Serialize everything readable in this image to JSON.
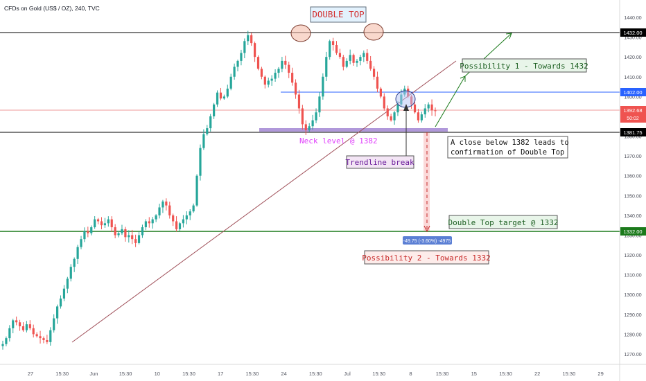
{
  "header": {
    "symbol_line": "CFDs on Gold (US$ / OZ), 240, TVC"
  },
  "colors": {
    "bull": "#26a69a",
    "bear": "#ef5350",
    "resistance": "#000000",
    "blue_level": "#2962ff",
    "current_price": "#ef5350",
    "target": "#1b7a1b",
    "trendline": "#a0505a",
    "neck_band": "#9575cd",
    "arrow_green": "#1b7a1b"
  },
  "annotations": {
    "double_top": "DOUBLE TOP",
    "neck_level": "Neck level @ 1382",
    "trendline_break": "Trendline break",
    "possibility_1": "Possibility 1 - Towards 1432",
    "possibility_2": "Possibility 2 - Towards 1332",
    "close_below_line1": "A close below 1382 leads to",
    "close_below_line2": "confirmation of Double Top",
    "target": "Double Top target @ 1332",
    "measure": "-49.75 (-3.60%) -4975"
  },
  "price_tags": {
    "level_1432": "1432.00",
    "level_1402": "1402.00",
    "current": "1392.68",
    "countdown": "50:02",
    "level_1381": "1381.75",
    "level_1332": "1332.00"
  },
  "chart_data": {
    "type": "candlestick",
    "title": "CFDs on Gold (US$ / OZ), 240, TVC",
    "y_ticks": [
      "1440.00",
      "1430.00",
      "1420.00",
      "1410.00",
      "1400.00",
      "1390.00",
      "1380.00",
      "1370.00",
      "1360.00",
      "1350.00",
      "1340.00",
      "1330.00",
      "1320.00",
      "1310.00",
      "1300.00",
      "1290.00",
      "1280.00",
      "1270.00"
    ],
    "ylim": [
      1265,
      1445
    ],
    "x_tick_labels": [
      "27",
      "15:30",
      "Jun",
      "15:30",
      "10",
      "15:30",
      "17",
      "15:30",
      "24",
      "15:30",
      "Jul",
      "15:30",
      "8",
      "15:30",
      "15",
      "15:30",
      "22",
      "15:30",
      "29"
    ],
    "close_path": [
      1275,
      1278,
      1283,
      1287,
      1286,
      1284,
      1282,
      1285,
      1283,
      1280,
      1279,
      1278,
      1277,
      1276,
      1282,
      1288,
      1294,
      1298,
      1303,
      1308,
      1314,
      1318,
      1324,
      1328,
      1332,
      1331,
      1334,
      1338,
      1337,
      1335,
      1336,
      1338,
      1334,
      1330,
      1331,
      1333,
      1329,
      1330,
      1328,
      1326,
      1330,
      1334,
      1337,
      1336,
      1338,
      1340,
      1344,
      1347,
      1345,
      1340,
      1337,
      1333,
      1336,
      1338,
      1340,
      1342,
      1345,
      1360,
      1374,
      1381,
      1384,
      1390,
      1396,
      1402,
      1399,
      1400,
      1404,
      1410,
      1415,
      1418,
      1422,
      1428,
      1431,
      1427,
      1420,
      1414,
      1410,
      1406,
      1408,
      1409,
      1412,
      1414,
      1418,
      1416,
      1412,
      1407,
      1401,
      1394,
      1386,
      1383,
      1385,
      1388,
      1392,
      1400,
      1410,
      1420,
      1428,
      1426,
      1422,
      1420,
      1415,
      1418,
      1421,
      1417,
      1418,
      1420,
      1422,
      1418,
      1414,
      1410,
      1404,
      1400,
      1394,
      1390,
      1388,
      1392,
      1396,
      1401,
      1404,
      1400,
      1396,
      1392,
      1388,
      1391,
      1394,
      1396,
      1393,
      1392.68
    ],
    "horizontal_levels": [
      {
        "label": "1432.00",
        "value": 1432
      },
      {
        "label": "1402.00",
        "value": 1402
      },
      {
        "label": "1392.68",
        "value": 1392.68
      },
      {
        "label": "1381.75",
        "value": 1381.75
      },
      {
        "label": "1332.00",
        "value": 1332
      }
    ],
    "neck_level": 1382,
    "double_top_target": 1332,
    "projection": {
      "from": 1381.75,
      "to": 1332,
      "change": -49.75,
      "percent": -3.6
    },
    "legend": "none",
    "grid": false
  }
}
